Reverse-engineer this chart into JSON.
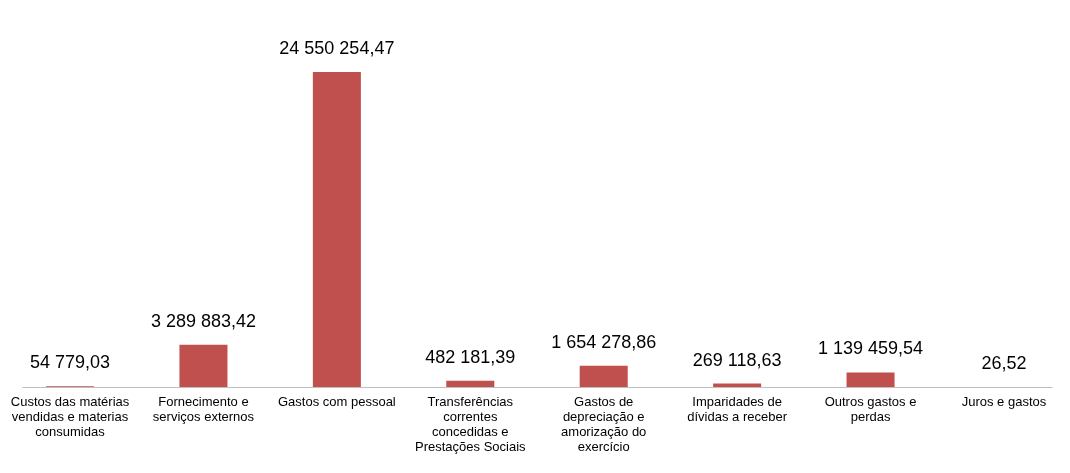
{
  "chart_data": {
    "type": "bar",
    "categories": [
      "Custos das matérias vendidas e materias consumidas",
      "Fornecimento  e serviços externos",
      "Gastos com  pessoal",
      "Transferências correntes concedidas e Prestações Sociais",
      "Gastos de depreciação e amorização do exercício",
      "Imparidades de dívidas a receber",
      "Outros gastos e perdas",
      "Juros e gastos"
    ],
    "values": [
      54779.03,
      3289883.42,
      24550254.47,
      482181.39,
      1654278.86,
      269118.63,
      1139459.54,
      26.52
    ],
    "value_labels": [
      "54 779,03",
      "3 289 883,42",
      "24 550 254,47",
      "482 181,39",
      "1 654 278,86",
      "269 118,63",
      "1 139 459,54",
      "26,52"
    ],
    "color": "#c0504d",
    "grid": false
  }
}
